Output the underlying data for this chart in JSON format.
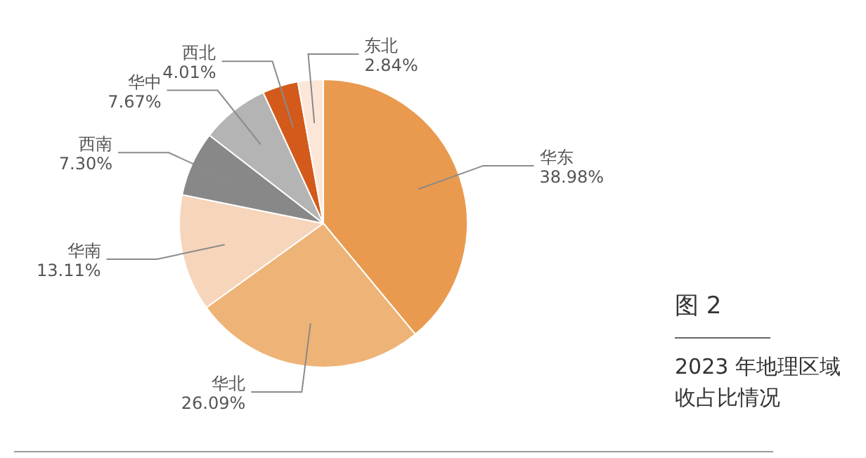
{
  "chart_data": {
    "type": "pie",
    "title": "图 2",
    "subtitle": "2023 年地理区域收占比情况",
    "categories": [
      "华东",
      "华北",
      "华南",
      "西南",
      "华中",
      "西北",
      "东北"
    ],
    "values": [
      38.98,
      26.09,
      13.11,
      7.3,
      7.67,
      4.01,
      2.84
    ],
    "value_labels": [
      "38.98%",
      "26.09%",
      "13.11%",
      "7.30%",
      "7.67%",
      "4.01%",
      "2.84%"
    ],
    "colors": [
      "#e99a4f",
      "#eeb376",
      "#f6d5bb",
      "#888888",
      "#b4b4b4",
      "#d35a1a",
      "#fbe6d8"
    ],
    "legend": false
  }
}
